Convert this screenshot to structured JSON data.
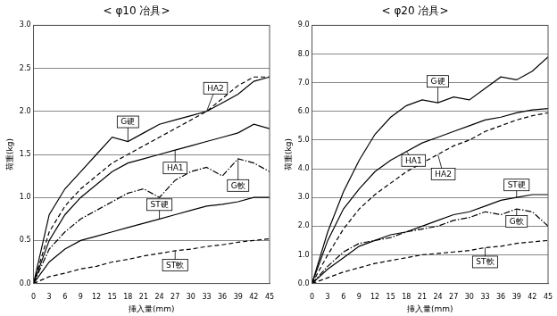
{
  "chart_data": [
    {
      "type": "line",
      "title": "< φ10 冶具>",
      "x_label": "挿入量(mm)",
      "y_label": "荷重(kg)",
      "x": [
        0,
        3,
        6,
        9,
        12,
        15,
        18,
        21,
        24,
        27,
        30,
        33,
        36,
        39,
        42,
        45
      ],
      "xlim": [
        0,
        45
      ],
      "xticks": [
        0,
        3,
        6,
        9,
        12,
        15,
        18,
        21,
        24,
        27,
        30,
        33,
        36,
        39,
        42,
        45
      ],
      "ylim": [
        0,
        3
      ],
      "yticks": [
        {
          "value": 0,
          "label": "0.0"
        },
        {
          "value": 0.5,
          "label": "0.5"
        },
        {
          "value": 1,
          "label": "1.0"
        },
        {
          "value": 1.5,
          "label": "1.5"
        },
        {
          "value": 2,
          "label": "2.0"
        },
        {
          "value": 2.5,
          "label": "2.5"
        },
        {
          "value": 3,
          "label": "3.0"
        }
      ],
      "grid": true,
      "series": [
        {
          "name": "HA2",
          "color": "#000000",
          "line_style": "dashed",
          "values": [
            0,
            0.6,
            0.9,
            1.1,
            1.25,
            1.4,
            1.5,
            1.6,
            1.7,
            1.8,
            1.9,
            2.0,
            2.15,
            2.3,
            2.4,
            2.4
          ]
        },
        {
          "name": "G硬",
          "color": "#000000",
          "line_style": "solid",
          "values": [
            0,
            0.8,
            1.1,
            1.3,
            1.5,
            1.7,
            1.65,
            1.75,
            1.85,
            1.9,
            1.95,
            2.0,
            2.1,
            2.2,
            2.35,
            2.4
          ]
        },
        {
          "name": "HA1",
          "color": "#000000",
          "line_style": "solid",
          "values": [
            0,
            0.5,
            0.8,
            1.0,
            1.15,
            1.3,
            1.4,
            1.45,
            1.5,
            1.55,
            1.6,
            1.65,
            1.7,
            1.75,
            1.85,
            1.8
          ]
        },
        {
          "name": "G軟",
          "color": "#000000",
          "line_style": "dashdot",
          "values": [
            0,
            0.4,
            0.6,
            0.75,
            0.85,
            0.95,
            1.05,
            1.1,
            1.0,
            1.2,
            1.3,
            1.35,
            1.25,
            1.45,
            1.4,
            1.3
          ]
        },
        {
          "name": "ST硬",
          "color": "#000000",
          "line_style": "solid",
          "values": [
            0,
            0.25,
            0.4,
            0.5,
            0.55,
            0.6,
            0.65,
            0.7,
            0.75,
            0.8,
            0.85,
            0.9,
            0.92,
            0.95,
            1.0,
            1.0
          ]
        },
        {
          "name": "ST軟",
          "color": "#000000",
          "line_style": "dashed",
          "values": [
            0,
            0.08,
            0.12,
            0.17,
            0.2,
            0.25,
            0.28,
            0.32,
            0.35,
            0.38,
            0.4,
            0.43,
            0.45,
            0.48,
            0.5,
            0.52
          ]
        }
      ]
    },
    {
      "type": "line",
      "title": "< φ20 冶具>",
      "x_label": "挿入量(mm)",
      "y_label": "荷重(kg)",
      "x": [
        0,
        3,
        6,
        9,
        12,
        15,
        18,
        21,
        24,
        27,
        30,
        33,
        36,
        39,
        42,
        45
      ],
      "xlim": [
        0,
        45
      ],
      "xticks": [
        0,
        3,
        6,
        9,
        12,
        15,
        18,
        21,
        24,
        27,
        30,
        33,
        36,
        39,
        42,
        45
      ],
      "ylim": [
        0,
        9
      ],
      "yticks": [
        {
          "value": 0,
          "label": "0.0"
        },
        {
          "value": 1,
          "label": "1.0"
        },
        {
          "value": 2,
          "label": "2.0"
        },
        {
          "value": 3,
          "label": "3.0"
        },
        {
          "value": 4,
          "label": "4.0"
        },
        {
          "value": 5,
          "label": "5.0"
        },
        {
          "value": 6,
          "label": "6.0"
        },
        {
          "value": 7,
          "label": "7.0"
        },
        {
          "value": 8,
          "label": "8.0"
        },
        {
          "value": 9,
          "label": "9.0"
        }
      ],
      "grid": true,
      "series": [
        {
          "name": "G硬",
          "color": "#000000",
          "line_style": "solid",
          "values": [
            0,
            1.8,
            3.2,
            4.3,
            5.2,
            5.8,
            6.2,
            6.4,
            6.3,
            6.5,
            6.4,
            6.8,
            7.2,
            7.1,
            7.4,
            7.9
          ]
        },
        {
          "name": "HA1",
          "color": "#000000",
          "line_style": "solid",
          "values": [
            0,
            1.5,
            2.6,
            3.3,
            3.9,
            4.3,
            4.6,
            4.9,
            5.1,
            5.3,
            5.5,
            5.7,
            5.8,
            5.95,
            6.05,
            6.1
          ]
        },
        {
          "name": "HA2",
          "color": "#000000",
          "line_style": "dashed",
          "values": [
            0,
            1.0,
            1.9,
            2.6,
            3.1,
            3.5,
            3.9,
            4.2,
            4.5,
            4.8,
            5.0,
            5.3,
            5.5,
            5.7,
            5.85,
            5.95
          ]
        },
        {
          "name": "ST硬",
          "color": "#000000",
          "line_style": "solid",
          "values": [
            0,
            0.5,
            0.9,
            1.3,
            1.5,
            1.7,
            1.8,
            2.0,
            2.2,
            2.4,
            2.5,
            2.7,
            2.9,
            3.0,
            3.1,
            3.1
          ]
        },
        {
          "name": "G軟",
          "color": "#000000",
          "line_style": "dashdot",
          "values": [
            0,
            0.6,
            1.1,
            1.4,
            1.5,
            1.6,
            1.8,
            1.9,
            2.0,
            2.2,
            2.3,
            2.5,
            2.4,
            2.6,
            2.5,
            2.0
          ]
        },
        {
          "name": "ST軟",
          "color": "#000000",
          "line_style": "dashed",
          "values": [
            0,
            0.2,
            0.4,
            0.55,
            0.7,
            0.8,
            0.9,
            1.0,
            1.05,
            1.1,
            1.15,
            1.25,
            1.3,
            1.4,
            1.45,
            1.5
          ]
        }
      ]
    }
  ]
}
